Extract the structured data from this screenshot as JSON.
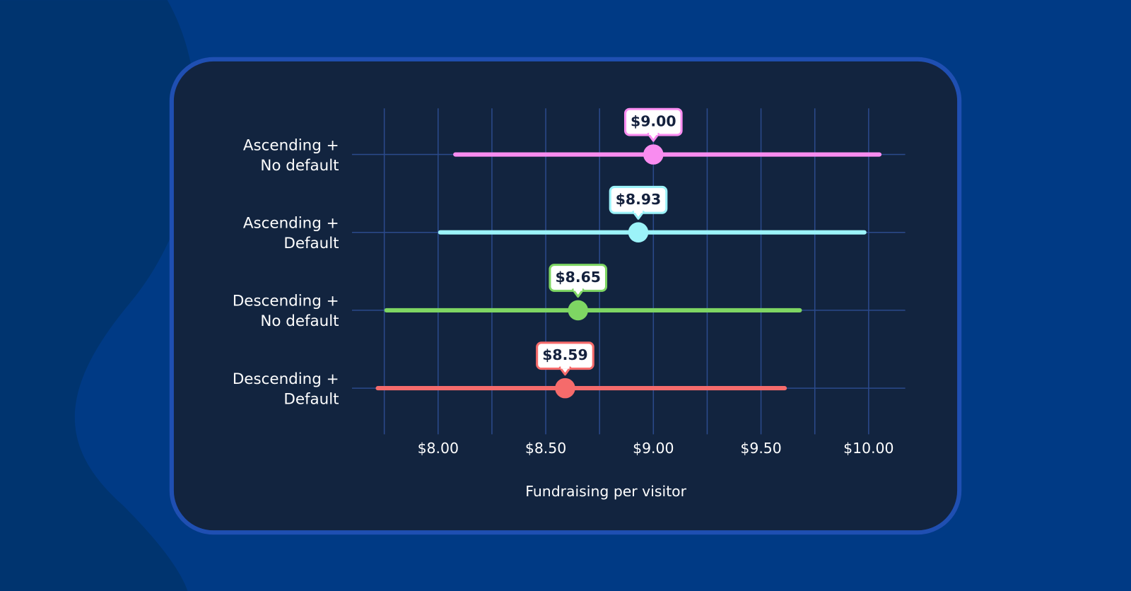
{
  "chart_data": {
    "type": "interval-dot",
    "categories": [
      [
        "Ascending +",
        "No default"
      ],
      [
        "Ascending +",
        "Default"
      ],
      [
        "Descending +",
        "No default"
      ],
      [
        "Descending +",
        "Default"
      ]
    ],
    "values": [
      9.0,
      8.93,
      8.65,
      8.59
    ],
    "value_labels": [
      "$9.00",
      "$8.93",
      "$8.65",
      "$8.59"
    ],
    "low": [
      8.08,
      8.01,
      7.76,
      7.72
    ],
    "high": [
      10.05,
      9.98,
      9.68,
      9.61
    ],
    "colors": [
      "#f98cf0",
      "#9cf3f9",
      "#7ed663",
      "#f56b6b"
    ],
    "xlabel": "Fundraising per visitor",
    "xlim": [
      7.6,
      10.17
    ],
    "xticks": [
      {
        "value": 8,
        "label": "$8.00"
      },
      {
        "value": 8.5,
        "label": "$8.50"
      },
      {
        "value": 9,
        "label": "$9.00"
      },
      {
        "value": 9.5,
        "label": "$9.50"
      },
      {
        "value": 10,
        "label": "$10.00"
      }
    ],
    "grid_lines": [
      7.75,
      8,
      8.25,
      8.5,
      8.75,
      9,
      9.25,
      9.5,
      9.75,
      10
    ]
  }
}
